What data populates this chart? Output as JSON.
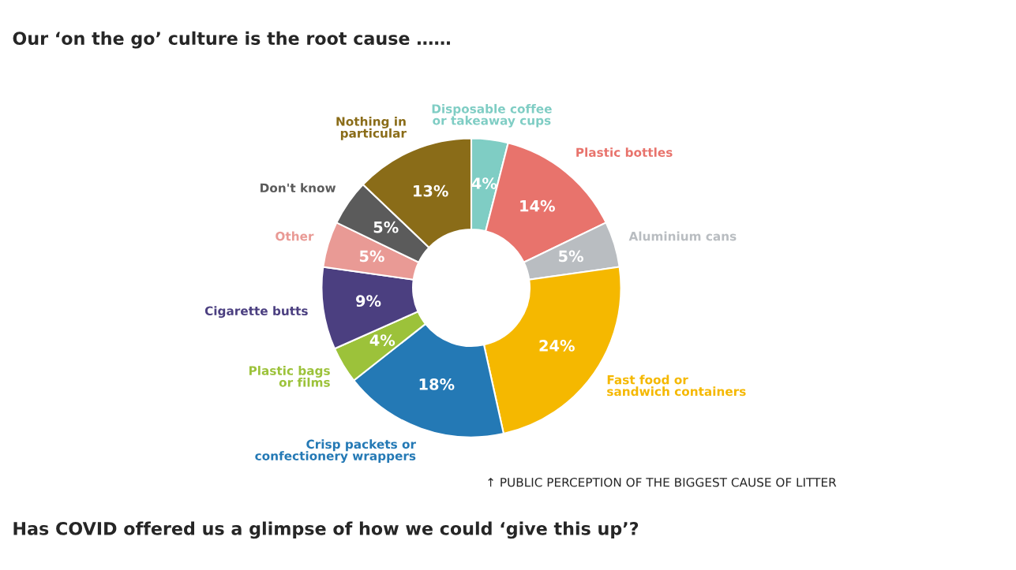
{
  "chart_data": {
    "type": "donut",
    "title": "Our ‘on the go’ culture is the root cause ……",
    "categories": [
      "Disposable coffee\nor takeaway cups",
      "Plastic bottles",
      "Aluminium cans",
      "Fast food or\nsandwich containers",
      "Crisp packets or\nconfectionery wrappers",
      "Plastic bags\nor films",
      "Cigarette butts",
      "Other",
      "Don't know",
      "Nothing in\nparticular"
    ],
    "values": [
      4,
      14,
      5,
      24,
      18,
      4,
      9,
      5,
      5,
      13
    ],
    "value_labels": [
      "4%",
      "14%",
      "5%",
      "24%",
      "18%",
      "4%",
      "9%",
      "5%",
      "5%",
      "13%"
    ],
    "colors": [
      "#7fcdc4",
      "#e8736c",
      "#b9bdc1",
      "#f5b800",
      "#2479b5",
      "#9cc23a",
      "#4b3f80",
      "#e99a95",
      "#5b5b5b",
      "#8a6c18"
    ],
    "annotations": [
      "↑ PUBLIC PERCEPTION OF THE BIGGEST CAUSE OF LITTER",
      "Has COVID offered us a glimpse of how we could ‘give this up’?"
    ]
  }
}
